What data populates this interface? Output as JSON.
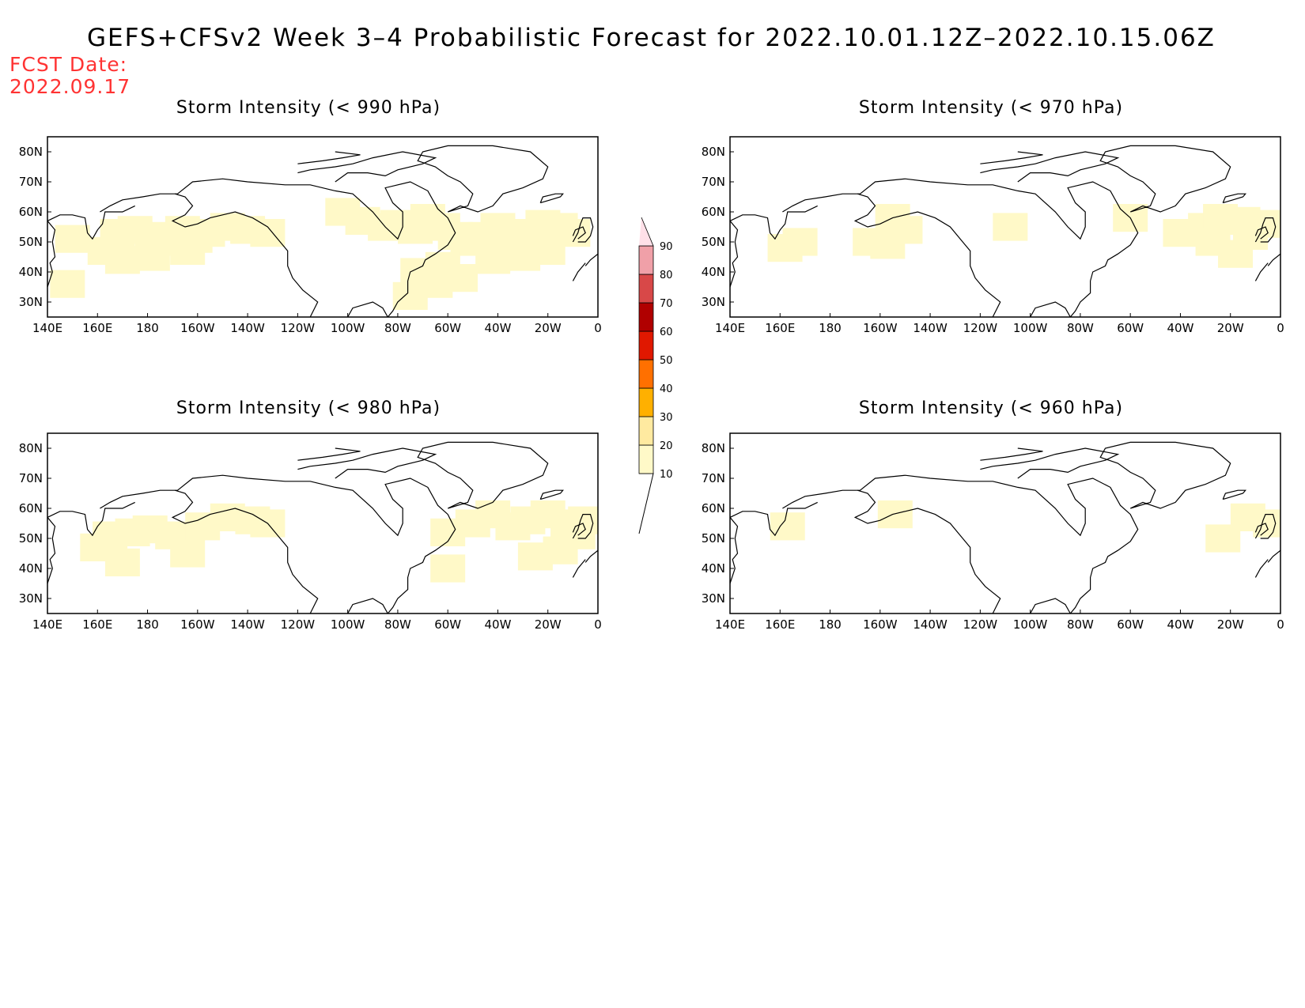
{
  "title": "GEFS+CFSv2 Week 3–4 Probabilistic Forecast for 2022.10.01.12Z–2022.10.15.06Z",
  "fcst_date_label": "FCST Date:",
  "fcst_date": "2022.09.17",
  "panels": [
    {
      "id": "p990",
      "title": "Storm Intensity (< 990 hPa)"
    },
    {
      "id": "p970",
      "title": "Storm Intensity (< 970 hPa)"
    },
    {
      "id": "p980",
      "title": "Storm Intensity (< 980 hPa)"
    },
    {
      "id": "p960",
      "title": "Storm Intensity (< 960 hPa)"
    }
  ],
  "lon_labels": [
    "140E",
    "160E",
    "180",
    "160W",
    "140W",
    "120W",
    "100W",
    "80W",
    "60W",
    "40W",
    "20W",
    "0"
  ],
  "lat_labels": [
    "80N",
    "70N",
    "60N",
    "50N",
    "40N",
    "30N"
  ],
  "colorbar": {
    "levels": [
      10,
      20,
      30,
      40,
      50,
      60,
      70,
      80,
      90
    ],
    "colors": [
      "#fff9c8",
      "#ffeaa0",
      "#ffb000",
      "#ff7000",
      "#e01800",
      "#b00000",
      "#d84848",
      "#f0a0a8",
      "#ffe0e8"
    ]
  },
  "chart_data": {
    "type": "heatmap",
    "lon_range": [
      140,
      360
    ],
    "lat_range": [
      25,
      85
    ],
    "fields": {
      "p990": [
        [
          148,
          36,
          1
        ],
        [
          163,
          47,
          5
        ],
        [
          168,
          53,
          6
        ],
        [
          175,
          54,
          7
        ],
        [
          182,
          52,
          7
        ],
        [
          188,
          50,
          6
        ],
        [
          194,
          54,
          8
        ],
        [
          199,
          51,
          6
        ],
        [
          204,
          53,
          7
        ],
        [
          212,
          55,
          6
        ],
        [
          220,
          54,
          5
        ],
        [
          228,
          53,
          4
        ],
        [
          170,
          44,
          5
        ],
        [
          182,
          45,
          5
        ],
        [
          196,
          47,
          6
        ],
        [
          150,
          51,
          3
        ],
        [
          258,
          60,
          4
        ],
        [
          266,
          57,
          3
        ],
        [
          275,
          55,
          4
        ],
        [
          280,
          56,
          5
        ],
        [
          287,
          54,
          5
        ],
        [
          292,
          58,
          6
        ],
        [
          298,
          55,
          7
        ],
        [
          303,
          52,
          6
        ],
        [
          308,
          50,
          7
        ],
        [
          315,
          52,
          7
        ],
        [
          320,
          55,
          8
        ],
        [
          326,
          50,
          7
        ],
        [
          333,
          53,
          7
        ],
        [
          338,
          56,
          6
        ],
        [
          345,
          55,
          6
        ],
        [
          350,
          53,
          6
        ],
        [
          288,
          40,
          4
        ],
        [
          298,
          42,
          3
        ],
        [
          305,
          38,
          3
        ],
        [
          318,
          44,
          4
        ],
        [
          330,
          45,
          4
        ],
        [
          340,
          47,
          5
        ],
        [
          295,
          36,
          2
        ],
        [
          285,
          32,
          2
        ]
      ],
      "p970": [
        [
          162,
          48,
          1
        ],
        [
          168,
          50,
          1
        ],
        [
          196,
          50,
          2
        ],
        [
          203,
          49,
          2
        ],
        [
          210,
          54,
          1
        ],
        [
          205,
          58,
          1
        ],
        [
          252,
          55,
          1
        ],
        [
          300,
          58,
          1
        ],
        [
          320,
          53,
          1
        ],
        [
          330,
          55,
          1
        ],
        [
          336,
          58,
          2
        ],
        [
          345,
          57,
          2
        ],
        [
          355,
          56,
          3
        ],
        [
          333,
          50,
          2
        ],
        [
          342,
          46,
          2
        ],
        [
          348,
          52,
          1
        ]
      ],
      "p980": [
        [
          160,
          47,
          2
        ],
        [
          165,
          51,
          2
        ],
        [
          174,
          52,
          3
        ],
        [
          181,
          53,
          5
        ],
        [
          190,
          51,
          3
        ],
        [
          196,
          45,
          4
        ],
        [
          202,
          54,
          2
        ],
        [
          212,
          57,
          2
        ],
        [
          222,
          56,
          2
        ],
        [
          228,
          55,
          2
        ],
        [
          170,
          42,
          2
        ],
        [
          300,
          52,
          1
        ],
        [
          310,
          55,
          2
        ],
        [
          318,
          58,
          3
        ],
        [
          326,
          54,
          4
        ],
        [
          332,
          56,
          4
        ],
        [
          340,
          58,
          3
        ],
        [
          348,
          55,
          3
        ],
        [
          352,
          51,
          2
        ],
        [
          300,
          40,
          1
        ],
        [
          335,
          44,
          3
        ],
        [
          345,
          46,
          4
        ],
        [
          355,
          56,
          2
        ]
      ],
      "p960": [
        [
          163,
          54,
          1
        ],
        [
          337,
          50,
          1
        ],
        [
          347,
          57,
          1
        ],
        [
          356,
          55,
          1
        ],
        [
          206,
          58,
          1
        ]
      ]
    }
  }
}
